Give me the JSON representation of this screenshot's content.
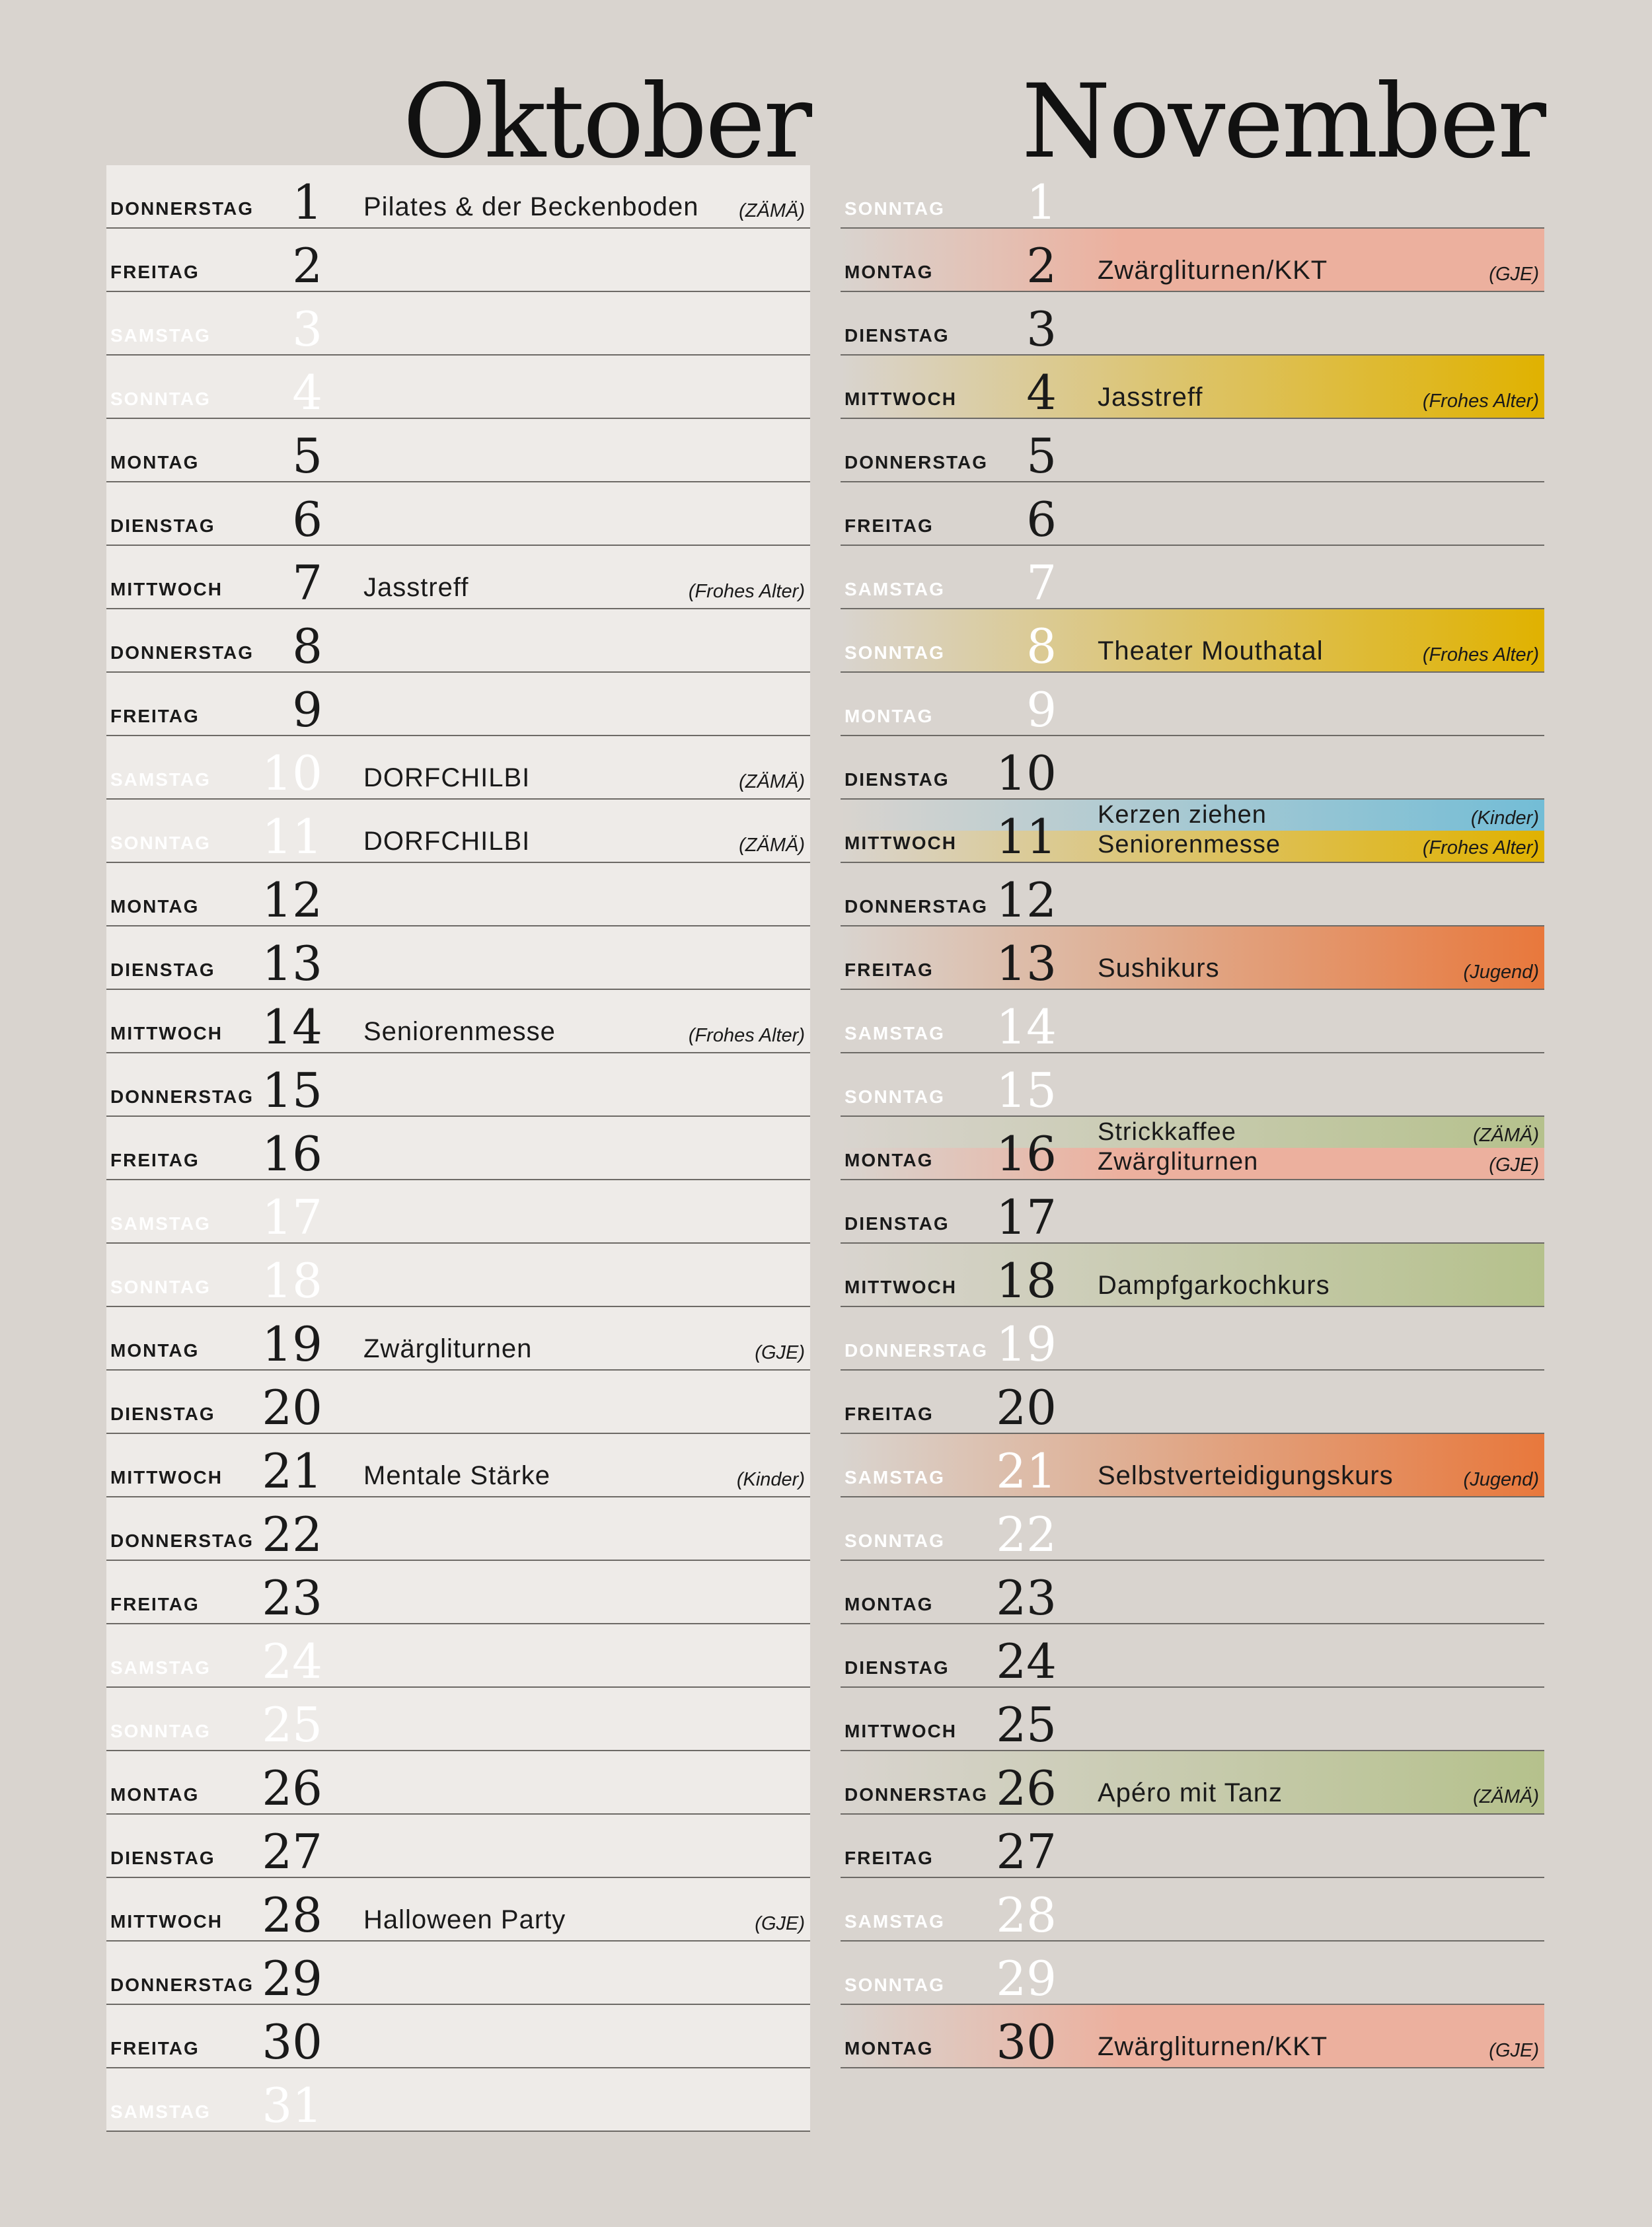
{
  "months": [
    {
      "name": "Oktober",
      "days": [
        {
          "wd": "DONNERSTAG",
          "n": "1",
          "w": false,
          "events": [
            {
              "title": "Pilates & der Beckenboden",
              "tag": "(ZÄMÄ)",
              "cat": "zama"
            }
          ]
        },
        {
          "wd": "FREITAG",
          "n": "2",
          "w": false,
          "events": []
        },
        {
          "wd": "SAMSTAG",
          "n": "3",
          "w": true,
          "events": []
        },
        {
          "wd": "SONNTAG",
          "n": "4",
          "w": true,
          "events": []
        },
        {
          "wd": "MONTAG",
          "n": "5",
          "w": false,
          "events": []
        },
        {
          "wd": "DIENSTAG",
          "n": "6",
          "w": false,
          "events": []
        },
        {
          "wd": "MITTWOCH",
          "n": "7",
          "w": false,
          "events": [
            {
              "title": "Jasstreff",
              "tag": "(Frohes Alter)",
              "cat": "frohes"
            }
          ]
        },
        {
          "wd": "DONNERSTAG",
          "n": "8",
          "w": false,
          "events": []
        },
        {
          "wd": "FREITAG",
          "n": "9",
          "w": false,
          "events": []
        },
        {
          "wd": "SAMSTAG",
          "n": "10",
          "w": true,
          "events": [
            {
              "title": "DORFCHILBI",
              "tag": "(ZÄMÄ)",
              "cat": "zama"
            }
          ]
        },
        {
          "wd": "SONNTAG",
          "n": "11",
          "w": true,
          "events": [
            {
              "title": "DORFCHILBI",
              "tag": "(ZÄMÄ)",
              "cat": "zama"
            }
          ]
        },
        {
          "wd": "MONTAG",
          "n": "12",
          "w": false,
          "events": []
        },
        {
          "wd": "DIENSTAG",
          "n": "13",
          "w": false,
          "events": []
        },
        {
          "wd": "MITTWOCH",
          "n": "14",
          "w": false,
          "events": [
            {
              "title": "Seniorenmesse",
              "tag": "(Frohes Alter)",
              "cat": "frohes"
            }
          ]
        },
        {
          "wd": "DONNERSTAG",
          "n": "15",
          "w": false,
          "events": []
        },
        {
          "wd": "FREITAG",
          "n": "16",
          "w": false,
          "events": []
        },
        {
          "wd": "SAMSTAG",
          "n": "17",
          "w": true,
          "events": []
        },
        {
          "wd": "SONNTAG",
          "n": "18",
          "w": true,
          "events": []
        },
        {
          "wd": "MONTAG",
          "n": "19",
          "w": false,
          "events": [
            {
              "title": "Zwärgliturnen",
              "tag": "(GJE)",
              "cat": "gje"
            }
          ]
        },
        {
          "wd": "DIENSTAG",
          "n": "20",
          "w": false,
          "events": []
        },
        {
          "wd": "MITTWOCH",
          "n": "21",
          "w": false,
          "events": [
            {
              "title": "Mentale Stärke",
              "tag": "(Kinder)",
              "cat": "kinder"
            }
          ]
        },
        {
          "wd": "DONNERSTAG",
          "n": "22",
          "w": false,
          "events": []
        },
        {
          "wd": "FREITAG",
          "n": "23",
          "w": false,
          "events": []
        },
        {
          "wd": "SAMSTAG",
          "n": "24",
          "w": true,
          "events": []
        },
        {
          "wd": "SONNTAG",
          "n": "25",
          "w": true,
          "events": []
        },
        {
          "wd": "MONTAG",
          "n": "26",
          "w": false,
          "events": []
        },
        {
          "wd": "DIENSTAG",
          "n": "27",
          "w": false,
          "events": []
        },
        {
          "wd": "MITTWOCH",
          "n": "28",
          "w": false,
          "events": [
            {
              "title": "Halloween Party",
              "tag": "(GJE)",
              "cat": "gje"
            }
          ]
        },
        {
          "wd": "DONNERSTAG",
          "n": "29",
          "w": false,
          "events": []
        },
        {
          "wd": "FREITAG",
          "n": "30",
          "w": false,
          "events": []
        },
        {
          "wd": "SAMSTAG",
          "n": "31",
          "w": true,
          "events": []
        }
      ]
    },
    {
      "name": "November",
      "days": [
        {
          "wd": "SONNTAG",
          "n": "1",
          "w": true,
          "events": []
        },
        {
          "wd": "MONTAG",
          "n": "2",
          "w": false,
          "events": [
            {
              "title": "Zwärgliturnen/KKT",
              "tag": "(GJE)",
              "cat": "gje"
            }
          ]
        },
        {
          "wd": "DIENSTAG",
          "n": "3",
          "w": false,
          "events": []
        },
        {
          "wd": "MITTWOCH",
          "n": "4",
          "w": false,
          "events": [
            {
              "title": "Jasstreff",
              "tag": "(Frohes Alter)",
              "cat": "frohes"
            }
          ]
        },
        {
          "wd": "DONNERSTAG",
          "n": "5",
          "w": false,
          "events": []
        },
        {
          "wd": "FREITAG",
          "n": "6",
          "w": false,
          "events": []
        },
        {
          "wd": "SAMSTAG",
          "n": "7",
          "w": true,
          "events": []
        },
        {
          "wd": "SONNTAG",
          "n": "8",
          "w": true,
          "events": [
            {
              "title": "Theater Mouthatal",
              "tag": "(Frohes Alter)",
              "cat": "frohes"
            }
          ]
        },
        {
          "wd": "MONTAG",
          "n": "9",
          "w": true,
          "events": []
        },
        {
          "wd": "DIENSTAG",
          "n": "10",
          "w": false,
          "events": []
        },
        {
          "wd": "MITTWOCH",
          "n": "11",
          "w": false,
          "events": [
            {
              "title": "Kerzen ziehen",
              "tag": "(Kinder)",
              "cat": "kinder"
            },
            {
              "title": "Seniorenmesse",
              "tag": "(Frohes Alter)",
              "cat": "frohes"
            }
          ]
        },
        {
          "wd": "DONNERSTAG",
          "n": "12",
          "w": false,
          "events": []
        },
        {
          "wd": "FREITAG",
          "n": "13",
          "w": false,
          "events": [
            {
              "title": "Sushikurs",
              "tag": "(Jugend)",
              "cat": "jugend"
            }
          ]
        },
        {
          "wd": "SAMSTAG",
          "n": "14",
          "w": true,
          "events": []
        },
        {
          "wd": "SONNTAG",
          "n": "15",
          "w": true,
          "events": []
        },
        {
          "wd": "MONTAG",
          "n": "16",
          "w": false,
          "events": [
            {
              "title": "Strickkaffee",
              "tag": "(ZÄMÄ)",
              "cat": "zama"
            },
            {
              "title": "Zwärgliturnen",
              "tag": "(GJE)",
              "cat": "gje"
            }
          ]
        },
        {
          "wd": "DIENSTAG",
          "n": "17",
          "w": false,
          "events": []
        },
        {
          "wd": "MITTWOCH",
          "n": "18",
          "w": false,
          "events": [
            {
              "title": "Dampfgarkochkurs",
              "tag": "",
              "cat": "zama"
            }
          ]
        },
        {
          "wd": "DONNERSTAG",
          "n": "19",
          "w": true,
          "events": []
        },
        {
          "wd": "FREITAG",
          "n": "20",
          "w": false,
          "events": []
        },
        {
          "wd": "SAMSTAG",
          "n": "21",
          "w": true,
          "events": [
            {
              "title": "Selbstverteidigungskurs",
              "tag": "(Jugend)",
              "cat": "jugend"
            }
          ]
        },
        {
          "wd": "SONNTAG",
          "n": "22",
          "w": true,
          "events": []
        },
        {
          "wd": "MONTAG",
          "n": "23",
          "w": false,
          "events": []
        },
        {
          "wd": "DIENSTAG",
          "n": "24",
          "w": false,
          "events": []
        },
        {
          "wd": "MITTWOCH",
          "n": "25",
          "w": false,
          "events": []
        },
        {
          "wd": "DONNERSTAG",
          "n": "26",
          "w": false,
          "events": [
            {
              "title": "Apéro mit Tanz",
              "tag": "(ZÄMÄ)",
              "cat": "zama"
            }
          ]
        },
        {
          "wd": "FREITAG",
          "n": "27",
          "w": false,
          "events": []
        },
        {
          "wd": "SAMSTAG",
          "n": "28",
          "w": true,
          "events": []
        },
        {
          "wd": "SONNTAG",
          "n": "29",
          "w": true,
          "events": []
        },
        {
          "wd": "MONTAG",
          "n": "30",
          "w": false,
          "events": [
            {
              "title": "Zwärgliturnen/KKT",
              "tag": "(GJE)",
              "cat": "gje"
            }
          ]
        }
      ]
    }
  ],
  "colors": {
    "background": "#d9d4cf",
    "zama": "#b5c18c",
    "frohes_alter": "#e0b200",
    "gje": "#ecb09e",
    "kinder": "#73bdd6",
    "jugend": "#e8783c"
  }
}
